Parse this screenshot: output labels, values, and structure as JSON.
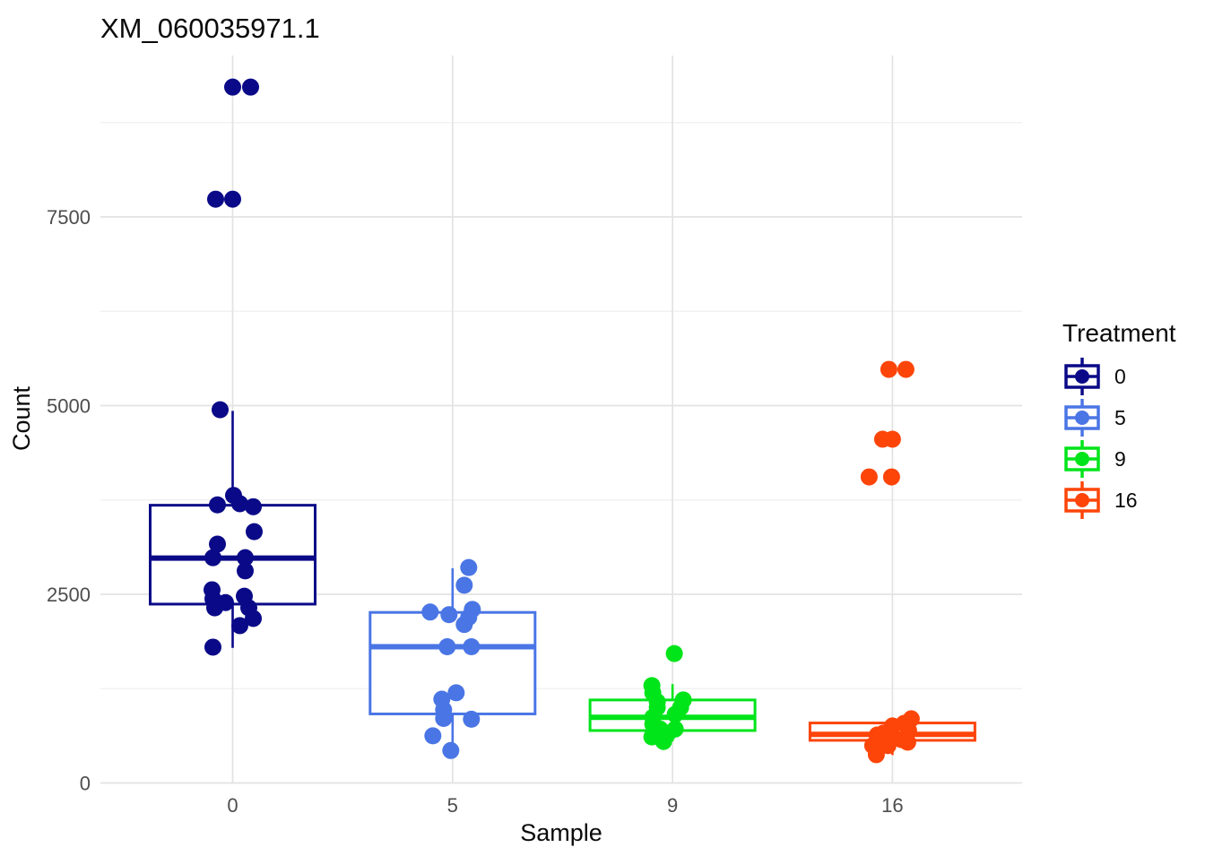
{
  "title": "XM_060035971.1",
  "legend": {
    "title": "Treatment",
    "position": "right"
  },
  "chart_data": {
    "type": "boxplot",
    "title": "XM_060035971.1",
    "xlabel": "Sample",
    "ylabel": "Count",
    "categories": [
      "0",
      "5",
      "9",
      "16"
    ],
    "y_major_ticks": [
      0,
      2500,
      5000,
      7500
    ],
    "y_minor_gridlines": [
      1250,
      3750,
      6250,
      8750
    ],
    "ylim": [
      0,
      9640
    ],
    "grid": true,
    "legend_position": "right",
    "style": {
      "grid_major_color": "#e3e3e3",
      "grid_minor_color": "#efefef",
      "box_fill": "#ffffff",
      "point_radius": 9.5
    },
    "groups": [
      {
        "name": "0",
        "color": "#0a0a88",
        "box": {
          "q1": 2370,
          "median": 2980,
          "q3": 3680,
          "whisker_low": 1790,
          "whisker_high": 4930
        },
        "points": [
          [
            0,
            9220
          ],
          [
            20,
            9220
          ],
          [
            -19,
            7735
          ],
          [
            0,
            7735
          ],
          [
            -14,
            4945
          ],
          [
            -17,
            3685
          ],
          [
            1,
            3810
          ],
          [
            8,
            3700
          ],
          [
            23,
            3660
          ],
          [
            24,
            3330
          ],
          [
            -17,
            3165
          ],
          [
            -22,
            2985
          ],
          [
            14,
            2985
          ],
          [
            14,
            2810
          ],
          [
            13,
            2475
          ],
          [
            -23,
            2560
          ],
          [
            -22,
            2440
          ],
          [
            -8,
            2390
          ],
          [
            -20,
            2320
          ],
          [
            18,
            2320
          ],
          [
            23,
            2180
          ],
          [
            8,
            2085
          ],
          [
            -22,
            1800
          ]
        ]
      },
      {
        "name": "5",
        "color": "#4a75e5",
        "box": {
          "q1": 915,
          "median": 1805,
          "q3": 2260,
          "whisker_low": 500,
          "whisker_high": 2845
        },
        "points": [
          [
            18,
            2855
          ],
          [
            13,
            2620
          ],
          [
            22,
            2300
          ],
          [
            -25,
            2265
          ],
          [
            -4,
            2230
          ],
          [
            18,
            2195
          ],
          [
            13,
            2100
          ],
          [
            -6,
            1805
          ],
          [
            21,
            1805
          ],
          [
            4,
            1195
          ],
          [
            -12,
            1110
          ],
          [
            -10,
            970
          ],
          [
            -10,
            855
          ],
          [
            21,
            845
          ],
          [
            -22,
            625
          ],
          [
            -2,
            430
          ]
        ]
      },
      {
        "name": "9",
        "color": "#00e41a",
        "box": {
          "q1": 695,
          "median": 870,
          "q3": 1100,
          "whisker_low": 550,
          "whisker_high": 1310
        },
        "points": [
          [
            2,
            1715
          ],
          [
            -23,
            1290
          ],
          [
            -22,
            1195
          ],
          [
            -17,
            1075
          ],
          [
            12,
            1100
          ],
          [
            -17,
            1000
          ],
          [
            9,
            1000
          ],
          [
            3,
            910
          ],
          [
            -22,
            870
          ],
          [
            -22,
            780
          ],
          [
            -14,
            715
          ],
          [
            3,
            715
          ],
          [
            -5,
            660
          ],
          [
            -23,
            610
          ],
          [
            -10,
            550
          ]
        ]
      },
      {
        "name": "16",
        "color": "#fd4509",
        "box": {
          "q1": 565,
          "median": 645,
          "q3": 795,
          "whisker_low": 370,
          "whisker_high": 860
        },
        "points": [
          [
            -4,
            5480
          ],
          [
            15,
            5480
          ],
          [
            -11,
            4555
          ],
          [
            0,
            4555
          ],
          [
            -26,
            4055
          ],
          [
            -1,
            4055
          ],
          [
            21,
            850
          ],
          [
            13,
            790
          ],
          [
            0,
            755
          ],
          [
            18,
            695
          ],
          [
            -10,
            660
          ],
          [
            -17,
            635
          ],
          [
            -2,
            600
          ],
          [
            10,
            575
          ],
          [
            17,
            540
          ],
          [
            -22,
            495
          ],
          [
            -5,
            495
          ],
          [
            -18,
            375
          ]
        ]
      }
    ]
  }
}
